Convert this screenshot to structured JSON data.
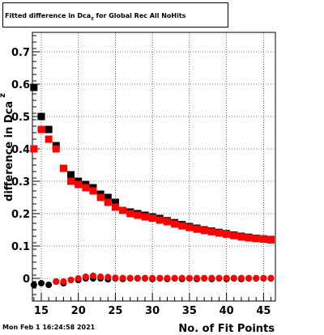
{
  "chart_data": {
    "type": "scatter",
    "title": {
      "prefix": "Fitted difference in Dca",
      "sub": "z",
      "suffix": " for Global Rec All NoHits"
    },
    "xlabel": "No. of Fit Points",
    "ylabel_main": "difference in Dca",
    "ylabel_sub": "z",
    "xlim": [
      13.8,
      46.6
    ],
    "ylim": [
      -0.07,
      0.76
    ],
    "xticks": [
      15,
      20,
      25,
      30,
      35,
      40,
      45
    ],
    "yticks": [
      0,
      0.1,
      0.2,
      0.3,
      0.4,
      0.5,
      0.6,
      0.7
    ],
    "ytick_labels": [
      "0",
      "0.1",
      "0.2",
      "0.3",
      "0.4",
      "0.5",
      "0.6",
      "0.7"
    ],
    "grid": true,
    "series": [
      {
        "color": "#000000",
        "marker": "square",
        "x": [
          14,
          15,
          16,
          17,
          18,
          19,
          20,
          21,
          22,
          23,
          24,
          25,
          26,
          27,
          28,
          29,
          30,
          31,
          32,
          33,
          34,
          35,
          36,
          37,
          38,
          39,
          40,
          41,
          42,
          43,
          44,
          45,
          46
        ],
        "y": [
          0.59,
          0.5,
          0.46,
          0.41,
          0.34,
          0.32,
          0.3,
          0.29,
          0.28,
          0.26,
          0.25,
          0.235,
          0.21,
          0.205,
          0.2,
          0.195,
          0.19,
          0.185,
          0.178,
          0.172,
          0.166,
          0.16,
          0.155,
          0.15,
          0.146,
          0.142,
          0.138,
          0.134,
          0.13,
          0.127,
          0.124,
          0.122,
          0.12
        ]
      },
      {
        "color": "#ff0000",
        "marker": "square",
        "x": [
          14,
          15,
          16,
          17,
          18,
          19,
          20,
          21,
          22,
          23,
          24,
          25,
          26,
          27,
          28,
          29,
          30,
          31,
          32,
          33,
          34,
          35,
          36,
          37,
          38,
          39,
          40,
          41,
          42,
          43,
          44,
          45,
          46
        ],
        "y": [
          0.4,
          0.46,
          0.43,
          0.4,
          0.34,
          0.3,
          0.29,
          0.28,
          0.27,
          0.25,
          0.235,
          0.22,
          0.21,
          0.2,
          0.195,
          0.19,
          0.186,
          0.18,
          0.175,
          0.168,
          0.162,
          0.157,
          0.152,
          0.148,
          0.144,
          0.14,
          0.136,
          0.132,
          0.128,
          0.125,
          0.123,
          0.121,
          0.119
        ]
      },
      {
        "color": "#000000",
        "marker": "circle",
        "x": [
          14,
          15,
          16,
          17,
          18,
          19,
          20,
          21,
          22,
          23,
          24,
          25,
          26,
          27,
          28,
          29,
          30,
          31,
          32,
          33,
          34,
          35,
          36,
          37,
          38,
          39,
          40,
          41,
          42,
          43,
          44,
          45,
          46
        ],
        "y": [
          -0.02,
          -0.015,
          -0.02,
          -0.01,
          -0.015,
          -0.005,
          -0.005,
          0.0,
          0.0,
          0.0,
          -0.003,
          0.0,
          -0.002,
          0.0,
          0.0,
          0.0,
          -0.002,
          0.0,
          -0.002,
          0.0,
          -0.002,
          0.0,
          -0.002,
          0.0,
          -0.002,
          0.0,
          -0.002,
          0.0,
          -0.002,
          0.0,
          0.0,
          0.0,
          0.0
        ]
      },
      {
        "color": "#ff0000",
        "marker": "circle",
        "x": [
          17,
          18,
          19,
          20,
          21,
          22,
          23,
          24,
          25,
          26,
          27,
          28,
          29,
          30,
          31,
          32,
          33,
          34,
          35,
          36,
          37,
          38,
          39,
          40,
          41,
          42,
          43,
          44,
          45,
          46
        ],
        "y": [
          -0.01,
          -0.01,
          -0.005,
          0.0,
          0.005,
          0.008,
          0.005,
          0.004,
          0.002,
          0.001,
          0.001,
          0.001,
          0.001,
          0.001,
          0.001,
          0.001,
          0.001,
          0.001,
          0.001,
          0.001,
          0.001,
          0.001,
          0.001,
          0.001,
          0.001,
          0.001,
          0.001,
          0.001,
          0.001,
          0.001
        ]
      }
    ]
  },
  "footer": {
    "timestamp": "Mon Feb  1 16:24:58 2021"
  }
}
